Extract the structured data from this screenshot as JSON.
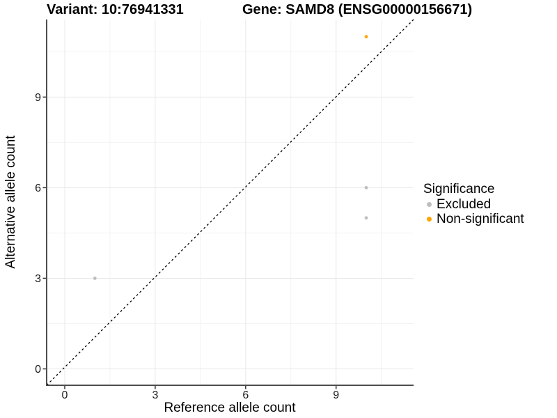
{
  "chart_data": {
    "type": "scatter",
    "title_left": "Variant: 10:76941331",
    "title_right": "Gene: SAMD8 (ENSG00000156671)",
    "xlabel": "Reference allele count",
    "ylabel": "Alternative allele count",
    "xlim": [
      -0.6,
      11.6
    ],
    "ylim": [
      -0.6,
      11.6
    ],
    "x_ticks": [
      0,
      3,
      6,
      9
    ],
    "y_ticks": [
      0,
      3,
      6,
      9
    ],
    "x_tick_labels": [
      "0",
      "3",
      "6",
      "9"
    ],
    "y_tick_labels": [
      "0",
      "3",
      "6",
      "9"
    ],
    "minor_ticks": [
      1.5,
      4.5,
      7.5,
      10.5
    ],
    "grid": true,
    "identity_line": {
      "style": "dashed",
      "color": "#000000",
      "equation": "y = x"
    },
    "legend": {
      "title": "Significance",
      "position": "right"
    },
    "series": [
      {
        "name": "Excluded",
        "color": "#BEBEBE",
        "points": [
          [
            1,
            3
          ],
          [
            10,
            5
          ],
          [
            10,
            6
          ]
        ]
      },
      {
        "name": "Non-significant",
        "color": "#FFA500",
        "points": [
          [
            10,
            11
          ]
        ]
      }
    ],
    "colors": {
      "background": "#FFFFFF",
      "grid_major": "#E8E8E8",
      "grid_minor": "#F3F3F3",
      "axis_line": "#4D4D4D",
      "tick_mark": "#333333",
      "tick_text": "#1A1A1A"
    }
  }
}
